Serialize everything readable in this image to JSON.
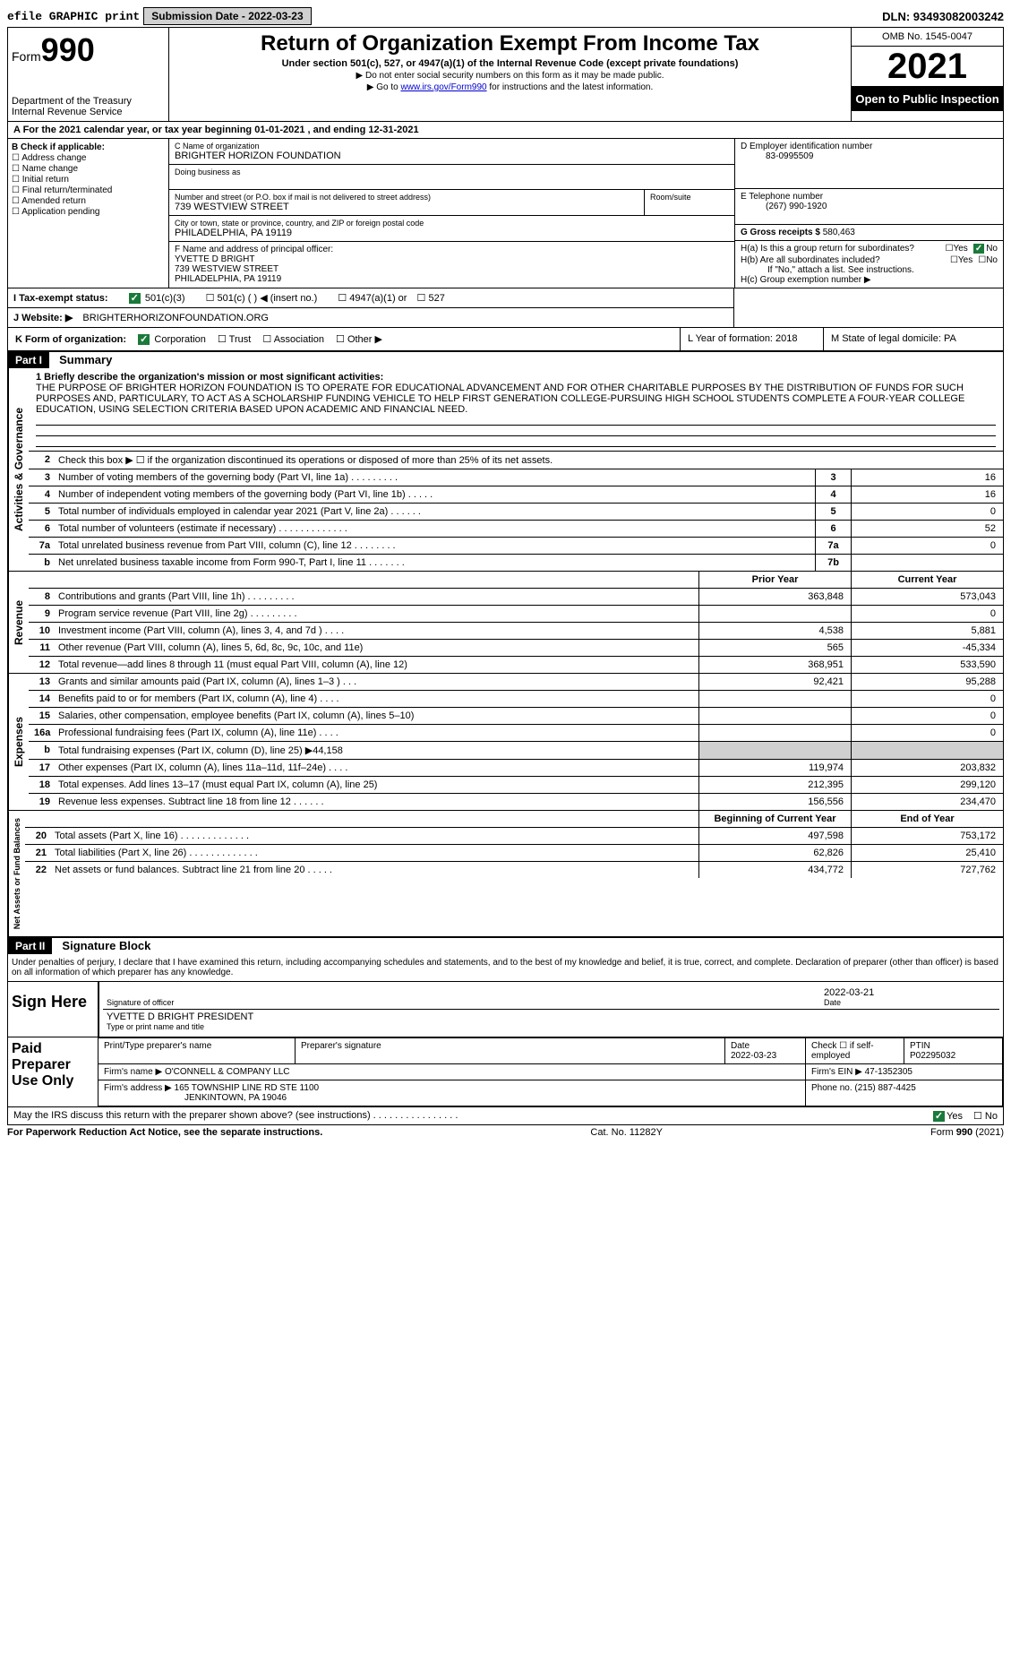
{
  "topbar": {
    "efile": "efile GRAPHIC print",
    "submission": "Submission Date - 2022-03-23",
    "dln": "DLN: 93493082003242"
  },
  "header": {
    "form_word": "Form",
    "form_num": "990",
    "dept": "Department of the Treasury",
    "irs": "Internal Revenue Service",
    "title": "Return of Organization Exempt From Income Tax",
    "sub": "Under section 501(c), 527, or 4947(a)(1) of the Internal Revenue Code (except private foundations)",
    "note1": "▶ Do not enter social security numbers on this form as it may be made public.",
    "note2_pre": "▶ Go to ",
    "note2_link": "www.irs.gov/Form990",
    "note2_post": " for instructions and the latest information.",
    "omb": "OMB No. 1545-0047",
    "year": "2021",
    "open": "Open to Public Inspection"
  },
  "row_a": "A For the 2021 calendar year, or tax year beginning 01-01-2021    , and ending 12-31-2021",
  "col_b": {
    "header": "B Check if applicable:",
    "items": [
      "Address change",
      "Name change",
      "Initial return",
      "Final return/terminated",
      "Amended return",
      "Application pending"
    ]
  },
  "col_c": {
    "name_label": "C Name of organization",
    "name": "BRIGHTER HORIZON FOUNDATION",
    "dba_label": "Doing business as",
    "street_label": "Number and street (or P.O. box if mail is not delivered to street address)",
    "street": "739 WESTVIEW STREET",
    "room_label": "Room/suite",
    "city_label": "City or town, state or province, country, and ZIP or foreign postal code",
    "city": "PHILADELPHIA, PA  19119",
    "officer_label": "F  Name and address of principal officer:",
    "officer_name": "YVETTE D BRIGHT",
    "officer_street": "739 WESTVIEW STREET",
    "officer_city": "PHILADELPHIA, PA  19119"
  },
  "col_d": {
    "ein_label": "D Employer identification number",
    "ein": "83-0995509",
    "phone_label": "E Telephone number",
    "phone": "(267) 990-1920",
    "gross_label": "G Gross receipts $",
    "gross": "580,463"
  },
  "col_h": {
    "ha": "H(a)  Is this a group return for subordinates?",
    "hb": "H(b)  Are all subordinates included?",
    "hb_note": "If \"No,\" attach a list. See instructions.",
    "hc": "H(c)  Group exemption number ▶"
  },
  "row_i": {
    "label": "I  Tax-exempt status:",
    "opts": [
      "501(c)(3)",
      "501(c) (  ) ◀ (insert no.)",
      "4947(a)(1) or",
      "527"
    ]
  },
  "row_j": {
    "label": "J  Website: ▶",
    "val": "BRIGHTERHORIZONFOUNDATION.ORG"
  },
  "row_k": {
    "label": "K Form of organization:",
    "opts": [
      "Corporation",
      "Trust",
      "Association",
      "Other ▶"
    ]
  },
  "row_l": "L Year of formation: 2018",
  "row_m": "M State of legal domicile: PA",
  "part1": {
    "header": "Part I",
    "title": "Summary",
    "q1_label": "1  Briefly describe the organization's mission or most significant activities:",
    "mission": "THE PURPOSE OF BRIGHTER HORIZON FOUNDATION IS TO OPERATE FOR EDUCATIONAL ADVANCEMENT AND FOR OTHER CHARITABLE PURPOSES BY THE DISTRIBUTION OF FUNDS FOR SUCH PURPOSES AND, PARTICULARY, TO ACT AS A SCHOLARSHIP FUNDING VEHICLE TO HELP FIRST GENERATION COLLEGE-PURSUING HIGH SCHOOL STUDENTS COMPLETE A FOUR-YEAR COLLEGE EDUCATION, USING SELECTION CRITERIA BASED UPON ACADEMIC AND FINANCIAL NEED.",
    "q2": "Check this box ▶ ☐  if the organization discontinued its operations or disposed of more than 25% of its net assets.",
    "vlabel_gov": "Activities & Governance",
    "vlabel_rev": "Revenue",
    "vlabel_exp": "Expenses",
    "vlabel_net": "Net Assets or Fund Balances",
    "governance": [
      {
        "n": "3",
        "label": "Number of voting members of the governing body (Part VI, line 1a)   .    .    .    .    .    .    .    .    .",
        "col": "3",
        "val": "16"
      },
      {
        "n": "4",
        "label": "Number of independent voting members of the governing body (Part VI, line 1b)    .    .    .    .    .",
        "col": "4",
        "val": "16"
      },
      {
        "n": "5",
        "label": "Total number of individuals employed in calendar year 2021 (Part V, line 2a)    .    .    .    .    .    .",
        "col": "5",
        "val": "0"
      },
      {
        "n": "6",
        "label": "Total number of volunteers (estimate if necessary)    .    .    .    .    .    .    .    .    .    .    .    .    .",
        "col": "6",
        "val": "52"
      },
      {
        "n": "7a",
        "label": "Total unrelated business revenue from Part VIII, column (C), line 12    .    .    .    .    .    .    .    .",
        "col": "7a",
        "val": "0"
      },
      {
        "n": "b",
        "label": "Net unrelated business taxable income from Form 990-T, Part I, line 11    .    .    .    .    .    .    .",
        "col": "7b",
        "val": ""
      }
    ],
    "col_headers": {
      "prior": "Prior Year",
      "current": "Current Year",
      "begin": "Beginning of Current Year",
      "end": "End of Year"
    },
    "revenue": [
      {
        "n": "8",
        "label": "Contributions and grants (Part VIII, line 1h)    .    .    .    .    .    .    .    .    .",
        "prior": "363,848",
        "curr": "573,043"
      },
      {
        "n": "9",
        "label": "Program service revenue (Part VIII, line 2g)    .    .    .    .    .    .    .    .    .",
        "prior": "",
        "curr": "0"
      },
      {
        "n": "10",
        "label": "Investment income (Part VIII, column (A), lines 3, 4, and 7d )    .    .    .    .",
        "prior": "4,538",
        "curr": "5,881"
      },
      {
        "n": "11",
        "label": "Other revenue (Part VIII, column (A), lines 5, 6d, 8c, 9c, 10c, and 11e)",
        "prior": "565",
        "curr": "-45,334"
      },
      {
        "n": "12",
        "label": "Total revenue—add lines 8 through 11 (must equal Part VIII, column (A), line 12)",
        "prior": "368,951",
        "curr": "533,590"
      }
    ],
    "expenses": [
      {
        "n": "13",
        "label": "Grants and similar amounts paid (Part IX, column (A), lines 1–3 )    .    .    .",
        "prior": "92,421",
        "curr": "95,288"
      },
      {
        "n": "14",
        "label": "Benefits paid to or for members (Part IX, column (A), line 4)    .    .    .    .",
        "prior": "",
        "curr": "0"
      },
      {
        "n": "15",
        "label": "Salaries, other compensation, employee benefits (Part IX, column (A), lines 5–10)",
        "prior": "",
        "curr": "0"
      },
      {
        "n": "16a",
        "label": "Professional fundraising fees (Part IX, column (A), line 11e)    .    .    .    .",
        "prior": "",
        "curr": "0"
      },
      {
        "n": "b",
        "label": "Total fundraising expenses (Part IX, column (D), line 25) ▶44,158",
        "prior": "GRAY",
        "curr": "GRAY"
      },
      {
        "n": "17",
        "label": "Other expenses (Part IX, column (A), lines 11a–11d, 11f–24e)    .    .    .    .",
        "prior": "119,974",
        "curr": "203,832"
      },
      {
        "n": "18",
        "label": "Total expenses. Add lines 13–17 (must equal Part IX, column (A), line 25)",
        "prior": "212,395",
        "curr": "299,120"
      },
      {
        "n": "19",
        "label": "Revenue less expenses. Subtract line 18 from line 12    .    .    .    .    .    .",
        "prior": "156,556",
        "curr": "234,470"
      }
    ],
    "netassets": [
      {
        "n": "20",
        "label": "Total assets (Part X, line 16)    .    .    .    .    .    .    .    .    .    .    .    .    .",
        "prior": "497,598",
        "curr": "753,172"
      },
      {
        "n": "21",
        "label": "Total liabilities (Part X, line 26)    .    .    .    .    .    .    .    .    .    .    .    .    .",
        "prior": "62,826",
        "curr": "25,410"
      },
      {
        "n": "22",
        "label": "Net assets or fund balances. Subtract line 21 from line 20    .    .    .    .    .",
        "prior": "434,772",
        "curr": "727,762"
      }
    ]
  },
  "part2": {
    "header": "Part II",
    "title": "Signature Block",
    "declaration": "Under penalties of perjury, I declare that I have examined this return, including accompanying schedules and statements, and to the best of my knowledge and belief, it is true, correct, and complete. Declaration of preparer (other than officer) is based on all information of which preparer has any knowledge.",
    "sign_here": "Sign Here",
    "sig_officer": "Signature of officer",
    "sig_date": "Date",
    "sig_date_val": "2022-03-21",
    "sig_name": "YVETTE D BRIGHT PRESIDENT",
    "sig_name_label": "Type or print name and title",
    "paid": "Paid Preparer Use Only",
    "prep_name_label": "Print/Type preparer's name",
    "prep_sig_label": "Preparer's signature",
    "prep_date_label": "Date",
    "prep_date": "2022-03-23",
    "prep_check": "Check ☐ if self-employed",
    "ptin_label": "PTIN",
    "ptin": "P02295032",
    "firm_name_label": "Firm's name    ▶",
    "firm_name": "O'CONNELL & COMPANY LLC",
    "firm_ein_label": "Firm's EIN ▶",
    "firm_ein": "47-1352305",
    "firm_addr_label": "Firm's address ▶",
    "firm_addr1": "165 TOWNSHIP LINE RD STE 1100",
    "firm_addr2": "JENKINTOWN, PA  19046",
    "firm_phone_label": "Phone no.",
    "firm_phone": "(215) 887-4425",
    "discuss": "May the IRS discuss this return with the preparer shown above? (see instructions)    .    .    .    .    .    .    .    .    .    .    .    .    .    .    .    ."
  },
  "footer": {
    "left": "For Paperwork Reduction Act Notice, see the separate instructions.",
    "center": "Cat. No. 11282Y",
    "right": "Form 990 (2021)"
  }
}
